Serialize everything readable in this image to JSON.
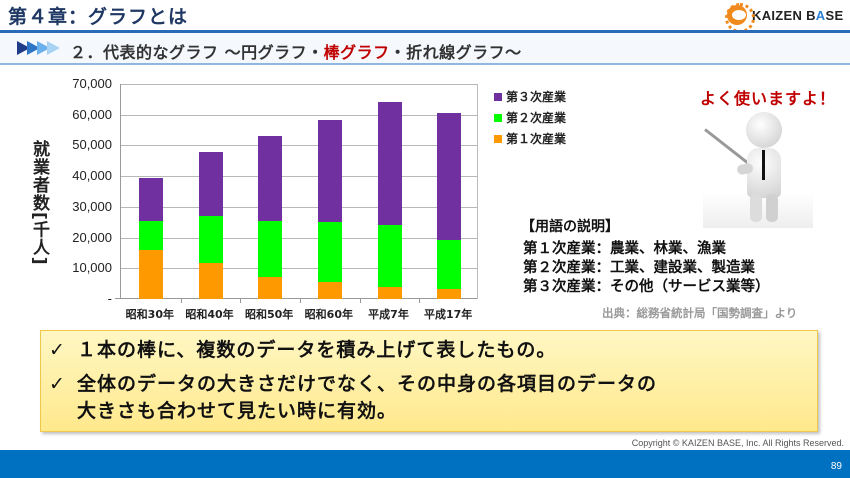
{
  "header": {
    "chapter_title": "第４章：グラフとは",
    "logo": {
      "prefix": "KAIZEN B",
      "accent": "A",
      "suffix": "SE",
      "icon": "gear-icon"
    }
  },
  "subheader": {
    "prefix": "２．代表的なグラフ ～円グラフ・",
    "highlight": "棒グラフ",
    "suffix": "・折れ線グラフ～",
    "icon": "chevron-arrows-icon"
  },
  "chart_data": {
    "type": "bar",
    "stacked": true,
    "title": "",
    "xlabel": "",
    "ylabel": "就業者数[千人]",
    "ylim": [
      0,
      70000
    ],
    "y_ticks": [
      "-",
      "10,000",
      "20,000",
      "30,000",
      "40,000",
      "50,000",
      "60,000",
      "70,000"
    ],
    "grid": true,
    "legend_position": "right",
    "categories": [
      "昭和30年",
      "昭和40年",
      "昭和50年",
      "昭和60年",
      "平成7年",
      "平成17年"
    ],
    "series": [
      {
        "name": "第１次産業",
        "color": "#ff9900",
        "values": [
          16000,
          11800,
          7300,
          5400,
          3800,
          3200
        ]
      },
      {
        "name": "第２次産業",
        "color": "#00ff00",
        "values": [
          9500,
          15200,
          18200,
          19600,
          20400,
          16000
        ]
      },
      {
        "name": "第３次産業",
        "color": "#7030a0",
        "values": [
          14000,
          21000,
          27500,
          33300,
          39800,
          41400
        ]
      }
    ],
    "legend": [
      "第３次産業",
      "第２次産業",
      "第１次産業"
    ]
  },
  "callout": {
    "text": "よく使いますよ！"
  },
  "glossary": {
    "title": "【用語の説明】",
    "lines": [
      "第１次産業：農業、林業、漁業",
      "第２次産業：工業、建設業、製造業",
      "第３次産業：その他（サービス業等）"
    ],
    "source": "出典：総務省統計局「国勢調査」より"
  },
  "summary": {
    "check": "✓",
    "items": [
      "１本の棒に、複数のデータを積み上げて表したもの。",
      "全体のデータの大きさだけでなく、その中身の各項目のデータの",
      "大きさも合わせて見たい時に有効。"
    ]
  },
  "footer": {
    "copyright": "Copyright ©  KAIZEN BASE, Inc.  All Rights Reserved.",
    "page_number": "89"
  }
}
